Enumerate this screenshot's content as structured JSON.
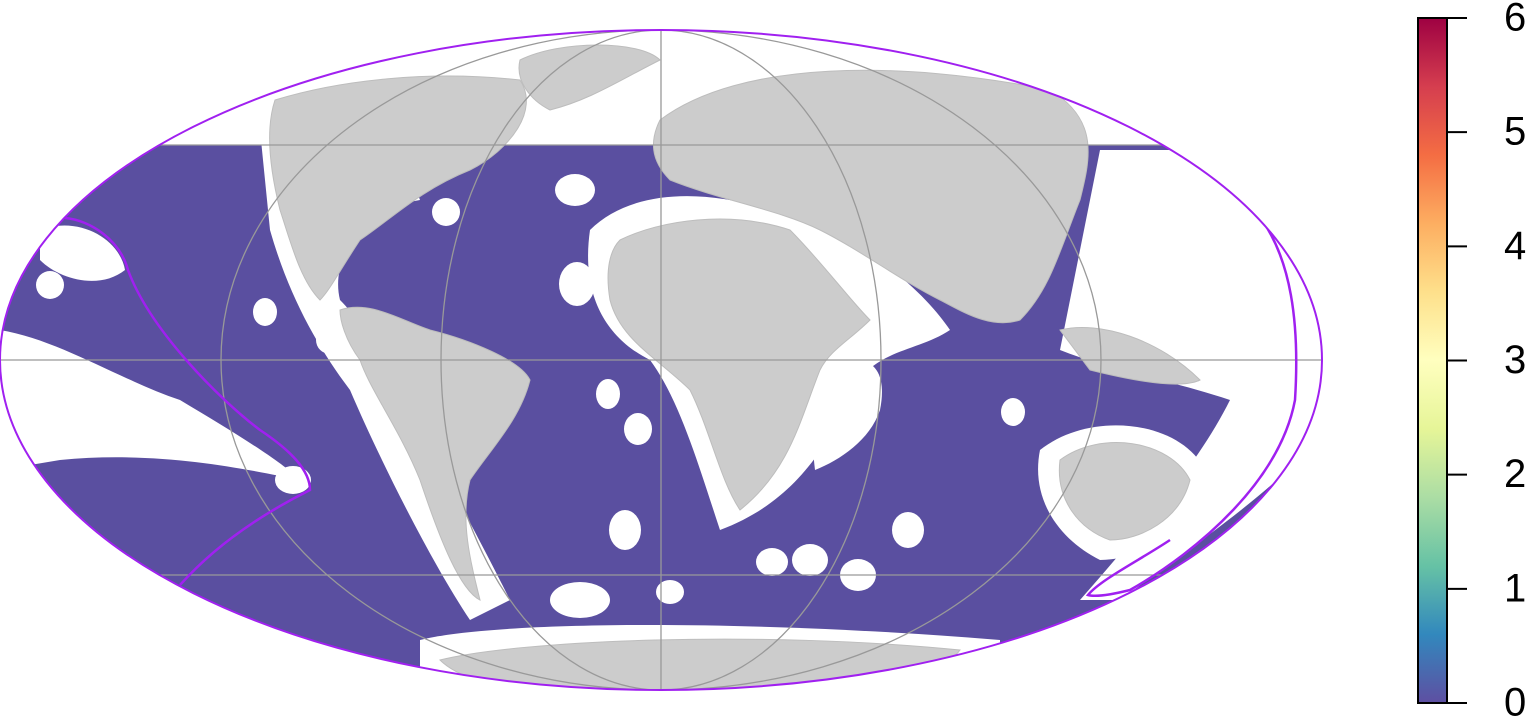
{
  "colorbar": {
    "lim": [
      0,
      6
    ],
    "ticks": [
      0,
      1,
      2,
      3,
      4,
      5,
      6
    ],
    "colors": [
      "#5e4fa2",
      "#3288bd",
      "#66c2a5",
      "#abdda4",
      "#e6f598",
      "#ffffbf",
      "#fee08b",
      "#fdae61",
      "#f46d43",
      "#d53e4f",
      "#9e0142"
    ]
  }
}
